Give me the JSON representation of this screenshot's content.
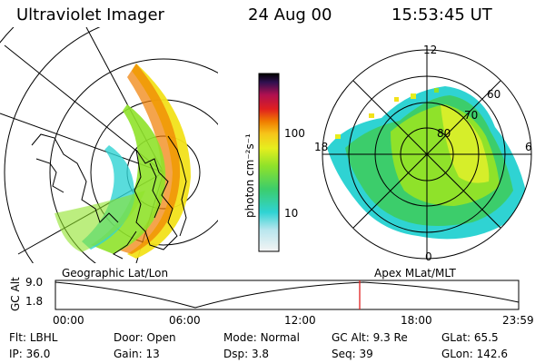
{
  "header": {
    "instrument": "Ultraviolet Imager",
    "date": "24 Aug 00",
    "time": "15:53:45 UT"
  },
  "colorbar": {
    "label": "photon cm⁻²s⁻¹",
    "ticks": [
      "100",
      "10"
    ]
  },
  "polar_plot": {
    "mlt_labels": [
      "12",
      "18",
      "6",
      "0"
    ],
    "lat_labels": [
      "60",
      "70",
      "80"
    ]
  },
  "panel_labels": {
    "left": "Geographic Lat/Lon",
    "right": "Apex MLat/MLT"
  },
  "altitude_strip": {
    "axis_label": "GC Alt",
    "y_ticks": [
      "9.0",
      "1.8"
    ],
    "time_ticks": [
      "00:00",
      "06:00",
      "12:00",
      "18:00",
      "23:59"
    ],
    "marker_time": "15:53:45"
  },
  "info": {
    "row1": [
      {
        "label": "Flt:",
        "value": "LBHL"
      },
      {
        "label": "Door:",
        "value": "Open"
      },
      {
        "label": "Mode:",
        "value": "Normal"
      },
      {
        "label": "GC Alt:",
        "value": "9.3 Re"
      },
      {
        "label": "GLat:",
        "value": "65.5"
      }
    ],
    "row2": [
      {
        "label": "IP:",
        "value": "36.0"
      },
      {
        "label": "Gain:",
        "value": "13"
      },
      {
        "label": "Dsp:",
        "value": "3.8"
      },
      {
        "label": "Seq:",
        "value": "39"
      },
      {
        "label": "GLon:",
        "value": "142.6"
      }
    ]
  },
  "colors": {
    "low": "#2fd3d3",
    "mid": "#8fe22a",
    "high": "#f2e21a",
    "peak": "#f07d00",
    "marker": "#e0201f"
  }
}
